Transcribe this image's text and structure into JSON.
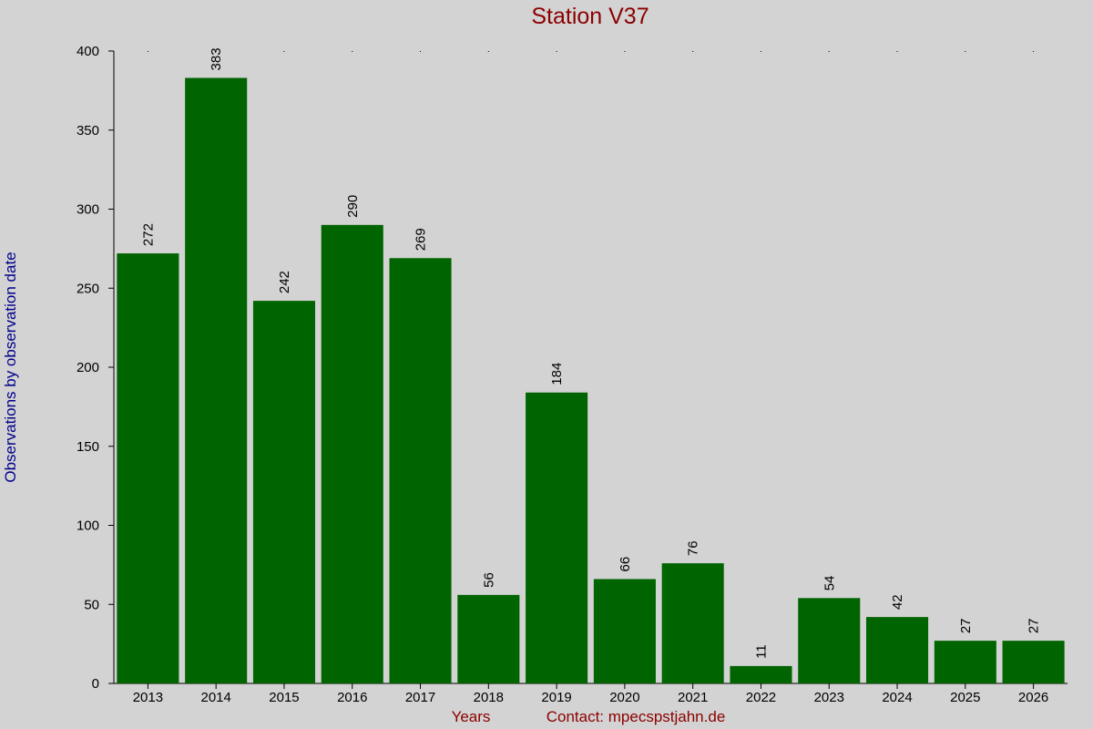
{
  "chart_data": {
    "type": "bar",
    "title": "Station V37",
    "y_label": "Observations by observation date",
    "x_label": "Years",
    "annotation": "Contact: mpecspstjahn.de",
    "categories": [
      "2013",
      "2014",
      "2015",
      "2016",
      "2017",
      "2018",
      "2019",
      "2020",
      "2021",
      "2022",
      "2023",
      "2024",
      "2025",
      "2026"
    ],
    "values": [
      272,
      383,
      242,
      290,
      269,
      56,
      184,
      66,
      76,
      11,
      54,
      42,
      27,
      27
    ],
    "color": "#006400",
    "ylim": [
      0,
      400
    ],
    "yticks": [
      0,
      50,
      100,
      150,
      200,
      250,
      300,
      350,
      400
    ],
    "grid": false
  }
}
